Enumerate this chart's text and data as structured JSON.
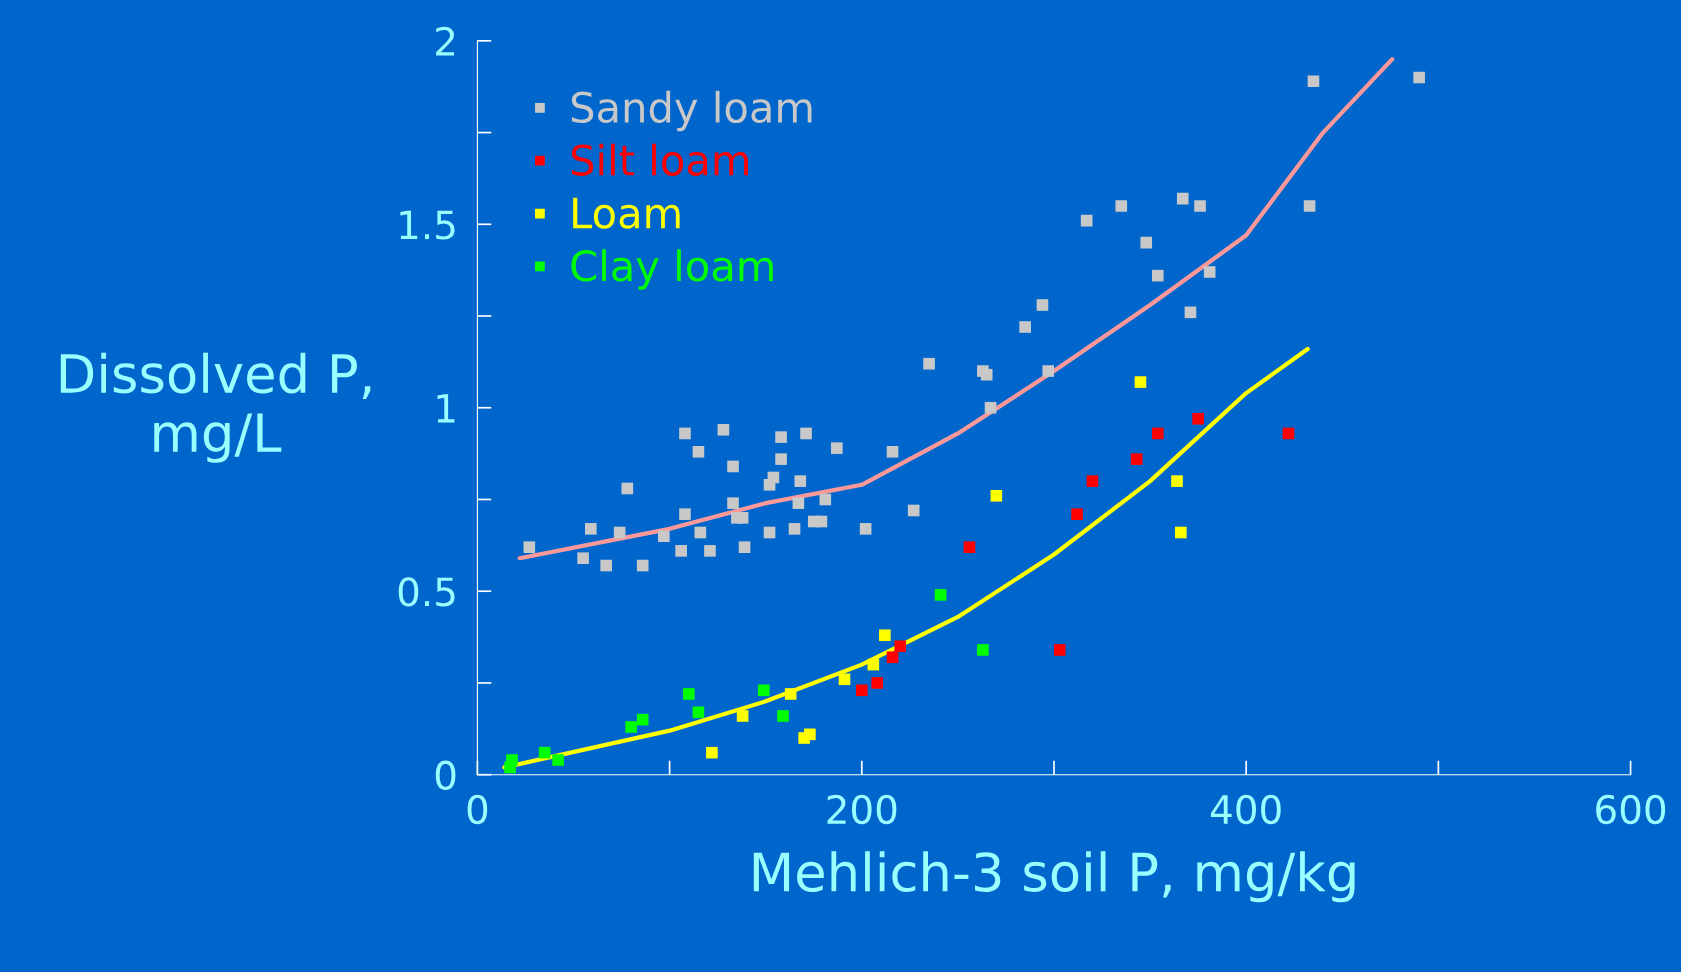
{
  "chart_data": {
    "type": "scatter",
    "xlabel": "Mehlich-3 soil P, mg/kg",
    "ylabel": "Dissolved P,\nmg/L",
    "xlim": [
      0,
      600
    ],
    "ylim": [
      0,
      2
    ],
    "xticks": [
      0,
      {
        "value": 100,
        "label": null
      },
      200,
      {
        "value": 300,
        "label": null
      },
      400,
      {
        "value": 500,
        "label": null
      },
      600
    ],
    "yticks": [
      0,
      {
        "value": 0.25,
        "label": null
      },
      0.5,
      {
        "value": 0.75,
        "label": null
      },
      1,
      {
        "value": 1.25,
        "label": null
      },
      1.5,
      {
        "value": 1.75,
        "label": null
      },
      2
    ],
    "grid": false,
    "legend": "top left",
    "marker": "square",
    "series": [
      {
        "name": "Sandy loam",
        "color": "#c8c8c8",
        "x": [
          27,
          59,
          55,
          67,
          74,
          78,
          86,
          97,
          108,
          108,
          106,
          115,
          116,
          121,
          128,
          133,
          133,
          135,
          138,
          139,
          152,
          152,
          154,
          158,
          158,
          165,
          167,
          168,
          171,
          175,
          179,
          181,
          187,
          202,
          216,
          227,
          235,
          263,
          265,
          267,
          285,
          294,
          297,
          317,
          335,
          348,
          354,
          367,
          371,
          376,
          381,
          433,
          435,
          490
        ],
        "values": [
          0.62,
          0.67,
          0.59,
          0.57,
          0.66,
          0.78,
          0.57,
          0.65,
          0.93,
          0.71,
          0.61,
          0.88,
          0.66,
          0.61,
          0.94,
          0.84,
          0.74,
          0.7,
          0.7,
          0.62,
          0.66,
          0.79,
          0.81,
          0.92,
          0.86,
          0.67,
          0.74,
          0.8,
          0.93,
          0.69,
          0.69,
          0.75,
          0.89,
          0.67,
          0.88,
          0.72,
          1.12,
          1.1,
          1.09,
          1.0,
          1.22,
          1.28,
          1.1,
          1.51,
          1.55,
          1.45,
          1.36,
          1.57,
          1.26,
          1.55,
          1.37,
          1.55,
          1.89,
          1.9
        ]
      },
      {
        "name": "Silt loam",
        "color": "#ff0000",
        "x": [
          200,
          208,
          216,
          220,
          256,
          303,
          312,
          320,
          343,
          354,
          375,
          422
        ],
        "values": [
          0.23,
          0.25,
          0.32,
          0.35,
          0.62,
          0.34,
          0.71,
          0.8,
          0.86,
          0.93,
          0.97,
          0.93
        ]
      },
      {
        "name": "Loam",
        "color": "#ffff00",
        "x": [
          122,
          138,
          163,
          170,
          173,
          191,
          206,
          212,
          270,
          345,
          364,
          366
        ],
        "values": [
          0.06,
          0.16,
          0.22,
          0.1,
          0.11,
          0.26,
          0.3,
          0.38,
          0.76,
          1.07,
          0.8,
          0.66
        ]
      },
      {
        "name": "Clay loam",
        "color": "#00ff00",
        "x": [
          17,
          18,
          35,
          42,
          80,
          86,
          110,
          115,
          149,
          159,
          241,
          263
        ],
        "values": [
          0.02,
          0.04,
          0.06,
          0.04,
          0.13,
          0.15,
          0.22,
          0.17,
          0.23,
          0.16,
          0.49,
          0.34
        ]
      },
      {
        "type": "line",
        "color": "#ff9999",
        "marker": "none",
        "x": [
          22,
          100,
          150,
          200,
          250,
          300,
          350,
          400,
          440,
          476
        ],
        "values": [
          0.59,
          0.67,
          0.74,
          0.79,
          0.93,
          1.1,
          1.28,
          1.47,
          1.75,
          1.95
        ]
      },
      {
        "type": "line",
        "color": "#ffff00",
        "marker": "none",
        "x": [
          14,
          100,
          150,
          200,
          250,
          300,
          350,
          400,
          432
        ],
        "values": [
          0.02,
          0.12,
          0.2,
          0.3,
          0.43,
          0.6,
          0.8,
          1.04,
          1.16
        ]
      }
    ]
  }
}
